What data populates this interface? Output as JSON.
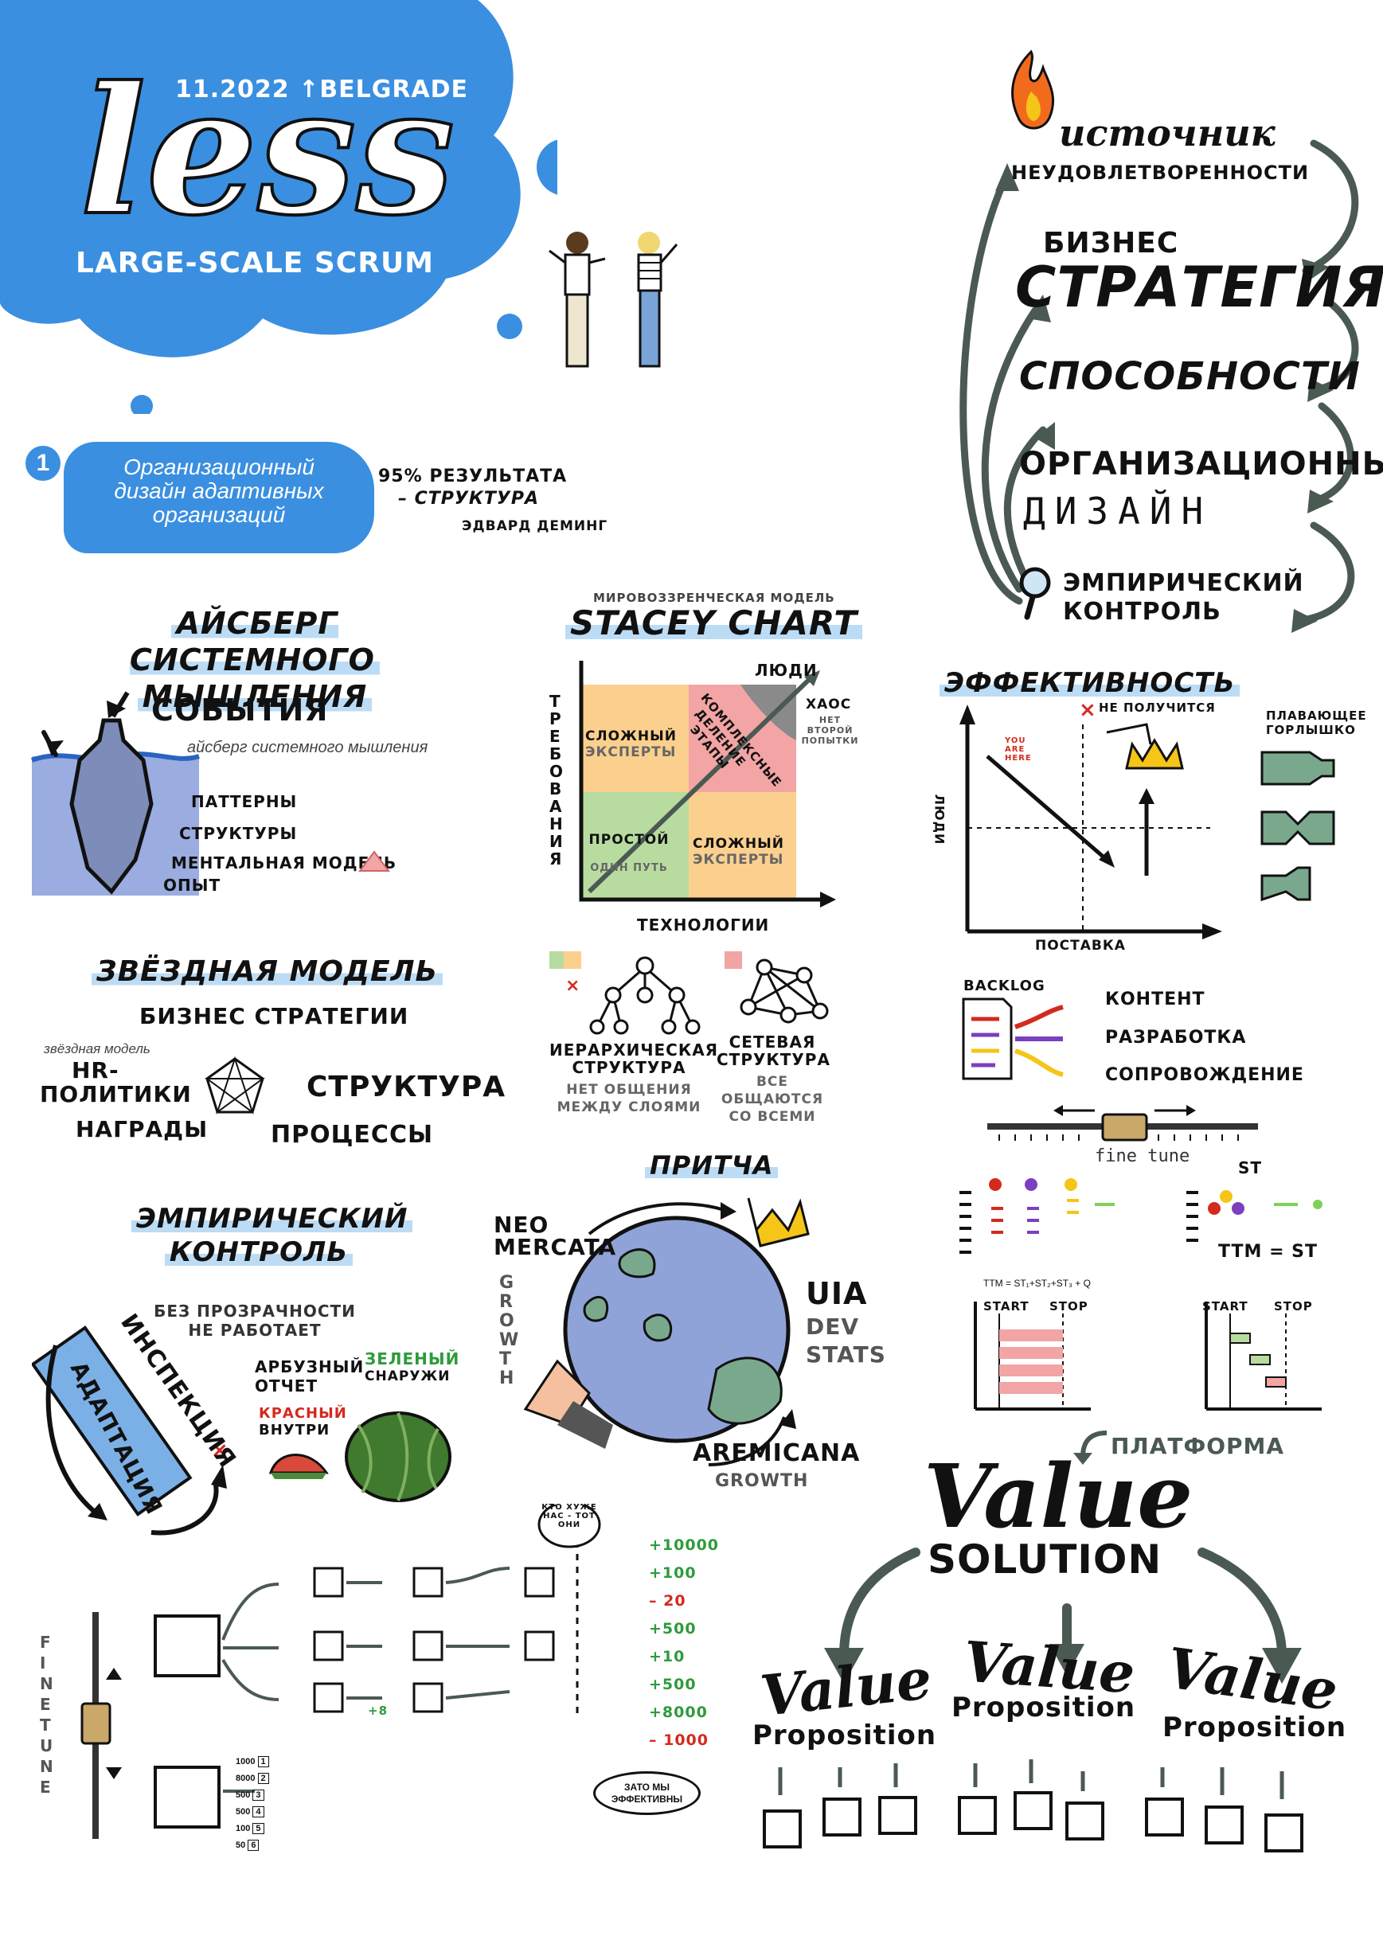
{
  "header": {
    "date_place": "11.2022 ↑BELGRADE",
    "logo": "less",
    "subtitle": "LARGE-SCALE SCRUM"
  },
  "section1": {
    "number": "1",
    "title_lines": [
      "Организационный",
      "дизайн адаптивных",
      "организаций"
    ],
    "quote_line1": "95% РЕЗУЛЬТАТА",
    "quote_line2": "– СТРУКТУРА",
    "quote_author": "ЭДВАРД ДЕМИНГ"
  },
  "flow": {
    "source_title": "источник",
    "source_sub": "НЕУДОВЛЕТВОРЕННОСТИ",
    "business": "БИЗНЕС",
    "strategy": "СТРАТЕГИЯ",
    "abilities": "СПОСОБНОСТИ",
    "org": "ОРГАНИЗАЦИОННЫЙ",
    "design": "ДИЗАЙН",
    "empiric1": "ЭМПИРИЧЕСКИЙ",
    "empiric2": "КОНТРОЛЬ"
  },
  "iceberg": {
    "title1": "АЙСБЕРГ СИСТЕМНОГО",
    "title2": "МЫШЛЕНИЯ",
    "events": "СОБЫТИЯ",
    "caption": "айсберг системного мышления",
    "levels": [
      "ПАТТЕРНЫ",
      "СТРУКТУРЫ",
      "МЕНТАЛЬНАЯ МОДЕЛЬ",
      "ОПЫТ"
    ]
  },
  "stacey": {
    "super": "МИРОВОЗЗРЕНЧЕСКАЯ МОДЕЛЬ",
    "title": "STACEY CHART",
    "people": "ЛЮДИ",
    "yaxis": "ТРЕБОВАНИЯ",
    "xaxis": "ТЕХНОЛОГИИ",
    "chaos": "ХАОС",
    "chaos_sub": "НЕТ ВТОРОЙ ПОПЫТКИ",
    "complex": "КОМПЛЕКСНЫЕ деление этапы",
    "hard": "СЛОЖНЫЙ",
    "experts": "ЭКСПЕРТЫ",
    "simple": "ПРОСТОЙ",
    "one_way": "ОДИН ПУТЬ"
  },
  "efficiency": {
    "title": "ЭФФЕКТИВНОСТЬ",
    "no": "НЕ ПОЛУЧИТСЯ",
    "you_are_here": "YOU ARE HERE",
    "yaxis": "ЛЮДИ",
    "xaxis": "ПОСТАВКА",
    "bottleneck": "ПЛАВАЮЩЕЕ ГОРЛЫШКО"
  },
  "star": {
    "title": "ЗВЁЗДНАЯ МОДЕЛЬ",
    "strategy": "БИЗНЕС СТРАТЕГИИ",
    "caption": "звёздная модель",
    "hr1": "HR-",
    "hr2": "ПОЛИТИКИ",
    "structure": "СТРУКТУРА",
    "rewards": "НАГРАДЫ",
    "processes": "ПРОЦЕССЫ"
  },
  "structures": {
    "hier1": "ИЕРАРХИЧЕСКАЯ",
    "hier2": "СТРУКТУРА",
    "hier_note1": "НЕТ ОБЩЕНИЯ",
    "hier_note2": "МЕЖДУ СЛОЯМИ",
    "net1": "СЕТЕВАЯ",
    "net2": "СТРУКТУРА",
    "net_note1": "ВСЕ ОБЩАЮТСЯ",
    "net_note2": "СО ВСЕМИ"
  },
  "backlog": {
    "label": "BACKLOG",
    "roles": [
      "КОНТЕНТ",
      "РАЗРАБОТКА",
      "СОПРОВОЖДЕНИЕ"
    ],
    "fine_tune": "fine tune",
    "st": "ST",
    "ttm_formula": "TTM = ST₁+ST₂+ST₃ + Q",
    "ttm_st": "TTM = ST",
    "start": "START",
    "stop": "STOP"
  },
  "empirical": {
    "title1": "ЭМПИРИЧЕСКИЙ",
    "title2": "КОНТРОЛЬ",
    "inspection": "ИНСПЕКЦИЯ",
    "adaptation": "АДАПТАЦИЯ",
    "no_transparency1": "БЕЗ ПРОЗРАЧНОСТИ",
    "no_transparency2": "НЕ РАБОТАЕТ",
    "watermelon1": "АРБУЗНЫЙ",
    "watermelon2": "ОТЧЕТ",
    "red": "КРАСНЫЙ",
    "inside": "ВНУТРИ",
    "green": "ЗЕЛЕНЫЙ",
    "outside": "СНАРУЖИ"
  },
  "parable": {
    "title": "ПРИТЧА",
    "neo1": "NEO",
    "neo2": "MERCATA",
    "growth": "GROWTH",
    "uia": "UIA",
    "dev": "DEV",
    "stats": "STATS",
    "aremicana": "AREMICANA",
    "growth2": "GROWTH"
  },
  "teams": {
    "bubble": "КТО ХУЖЕ НАС - ТОТ ОНИ",
    "results": [
      "+10000",
      "+100",
      "– 20",
      "+500",
      "+10",
      "+500",
      "+8000",
      "– 1000"
    ],
    "efficient1": "ЗАТО МЫ",
    "efficient2": "ЭФФЕКТИВНЫ",
    "fine_tune_v": "FINE TUNE",
    "plus8": "+8",
    "mini_values": [
      "1000",
      "8000",
      "500",
      "500",
      "100",
      "50"
    ],
    "mini_ids": [
      "1",
      "2",
      "3",
      "4",
      "5",
      "6"
    ]
  },
  "value": {
    "platform": "ПЛАТФОРМА",
    "value": "Value",
    "solution": "SOLUTION",
    "proposition": "Proposition"
  },
  "colors": {
    "blue": "#3a8fe0",
    "green_area": "#b8dca0",
    "orange_area": "#fbd08e",
    "pink_area": "#f3a4a4",
    "grey_area": "#8a8a8a",
    "crown": "#f5c518"
  }
}
